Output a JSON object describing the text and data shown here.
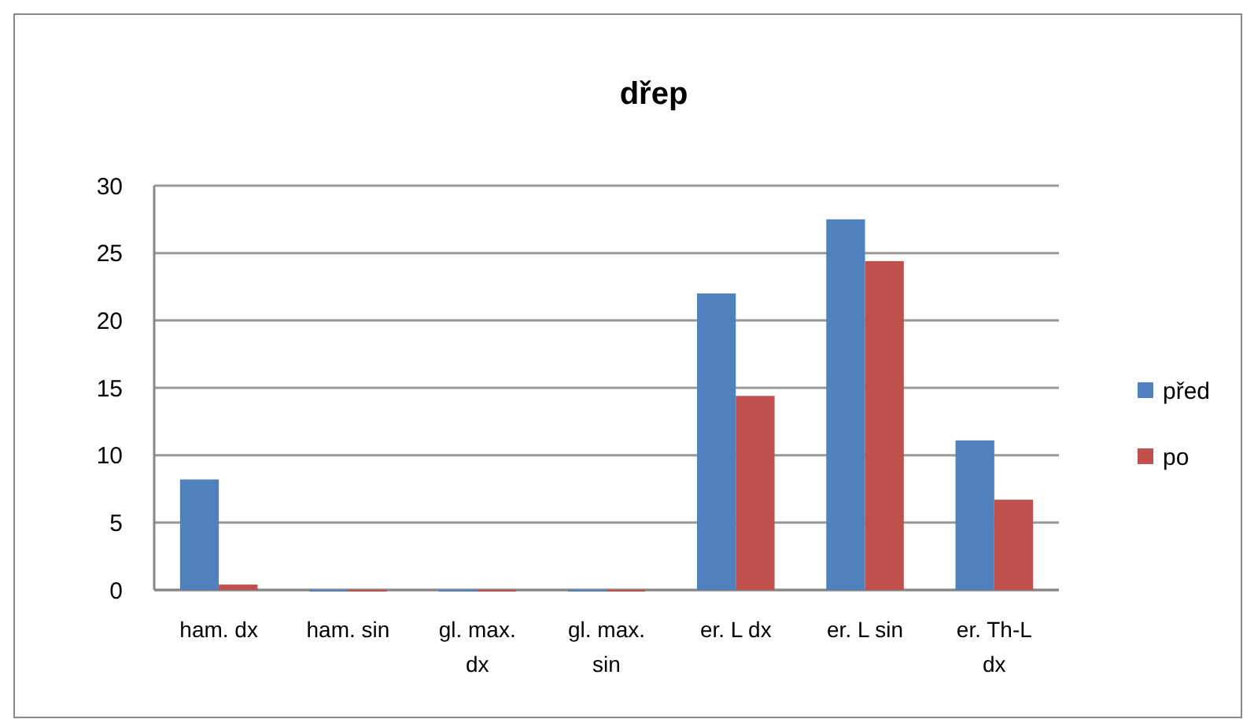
{
  "chart_data": {
    "type": "bar",
    "title": "dřep",
    "categories": [
      "ham. dx",
      "ham. sin",
      "gl. max. dx",
      "gl. max. sin",
      "er. L dx",
      "er. L sin",
      "er. Th-L dx"
    ],
    "series": [
      {
        "name": "před",
        "color": "#4f81bd",
        "values": [
          8.2,
          0,
          0,
          0,
          22,
          27.5,
          11.1
        ]
      },
      {
        "name": "po",
        "color": "#c0504d",
        "values": [
          0.4,
          0,
          0,
          0,
          14.4,
          24.4,
          6.7
        ]
      }
    ],
    "ylim": [
      0,
      30
    ],
    "yticks": [
      0,
      5,
      10,
      15,
      20,
      25,
      30
    ],
    "grid": "y",
    "legend": "right"
  }
}
